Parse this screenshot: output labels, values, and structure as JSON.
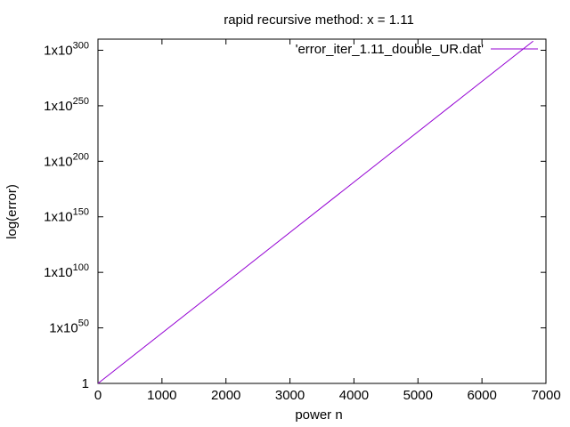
{
  "chart_data": {
    "type": "line",
    "title": "rapid recursive method: x = 1.11",
    "xlabel": "power n",
    "ylabel": "log(error)",
    "xlim": [
      0,
      7000
    ],
    "ylim_log10": [
      0,
      310
    ],
    "y_scale": "log",
    "x_ticks": [
      "0",
      "1000",
      "2000",
      "3000",
      "4000",
      "5000",
      "6000",
      "7000"
    ],
    "y_ticks": [
      {
        "exp": 0,
        "base": "1",
        "sup": ""
      },
      {
        "exp": 50,
        "base": "1x10",
        "sup": "50"
      },
      {
        "exp": 100,
        "base": "1x10",
        "sup": "100"
      },
      {
        "exp": 150,
        "base": "1x10",
        "sup": "150"
      },
      {
        "exp": 200,
        "base": "1x10",
        "sup": "200"
      },
      {
        "exp": 250,
        "base": "1x10",
        "sup": "250"
      },
      {
        "exp": 300,
        "base": "1x10",
        "sup": "300"
      }
    ],
    "grid": false,
    "legend_position": "top-right",
    "series": [
      {
        "name": "'error_iter_1.11_double_UR.dat'",
        "color": "#9400d3",
        "x": [
          0,
          6800
        ],
        "y_log10": [
          0,
          308.2
        ]
      }
    ]
  }
}
